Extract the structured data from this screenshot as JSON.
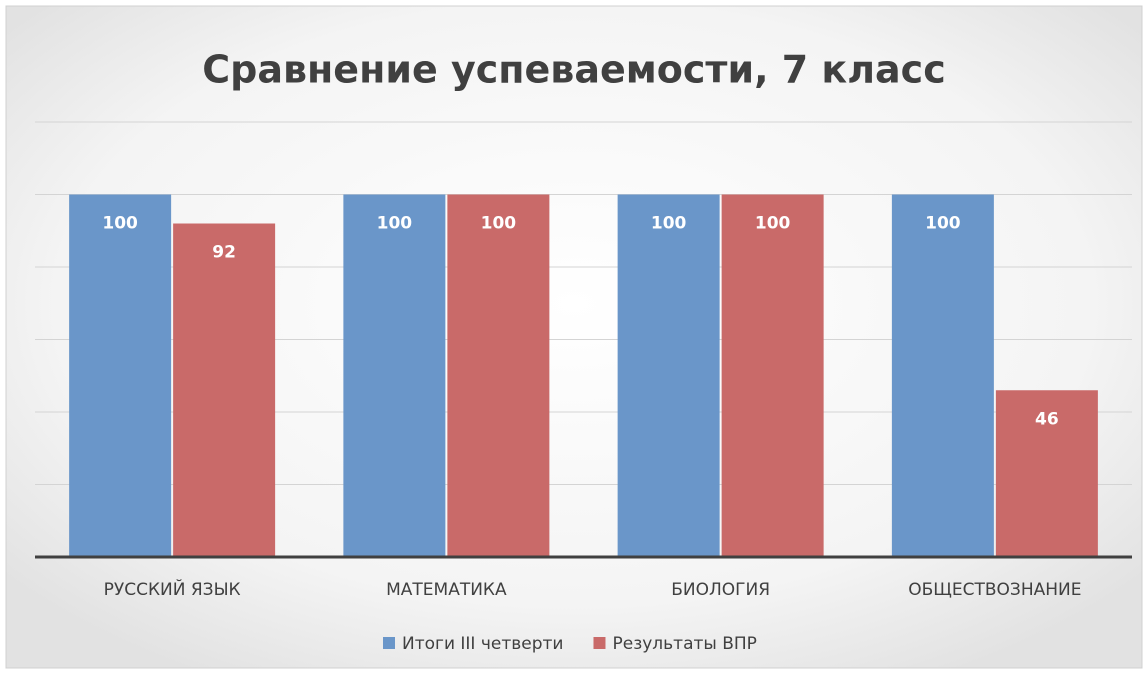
{
  "chart_data": {
    "type": "bar",
    "title": "Сравнение успеваемости, 7 класс",
    "categories": [
      "РУССКИЙ ЯЗЫК",
      "МАТЕМАТИКА",
      "БИОЛОГИЯ",
      "ОБЩЕСТВОЗНАНИЕ"
    ],
    "series": [
      {
        "name": "Итоги III четверти",
        "color": "#6a96c9",
        "values": [
          100,
          100,
          100,
          100
        ]
      },
      {
        "name": "Результаты ВПР",
        "color": "#c96a69",
        "values": [
          92,
          100,
          100,
          46
        ]
      }
    ],
    "ylim": [
      0,
      120
    ],
    "yticks": [
      0,
      20,
      40,
      60,
      80,
      100,
      120
    ],
    "grid": true,
    "legend": "bottom"
  }
}
